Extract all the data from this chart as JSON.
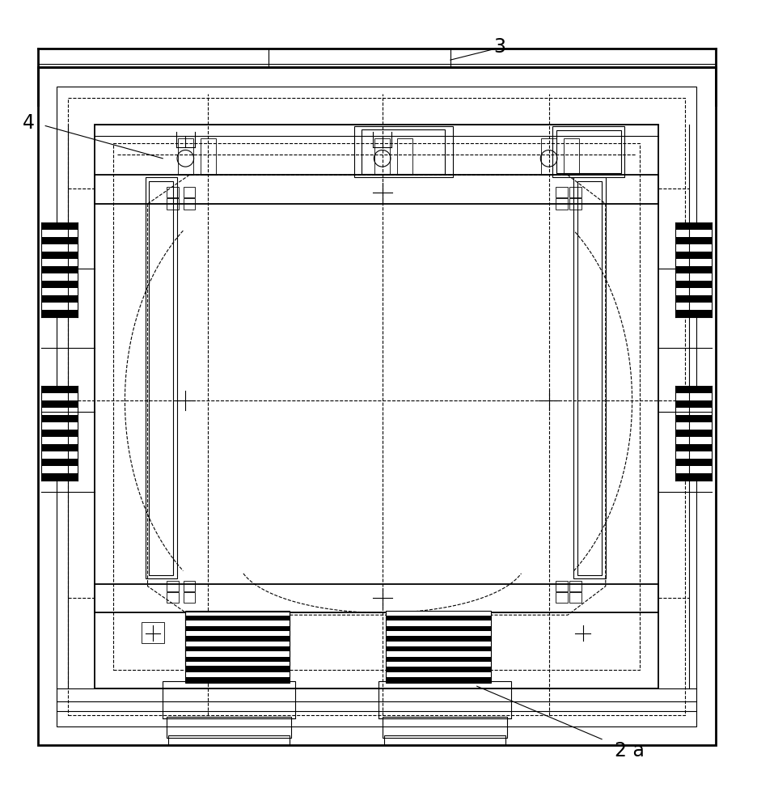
{
  "bg_color": "#ffffff",
  "line_color": "#000000",
  "lw_thick": 2.0,
  "lw_med": 1.3,
  "lw_thin": 0.8,
  "lw_vthin": 0.6
}
